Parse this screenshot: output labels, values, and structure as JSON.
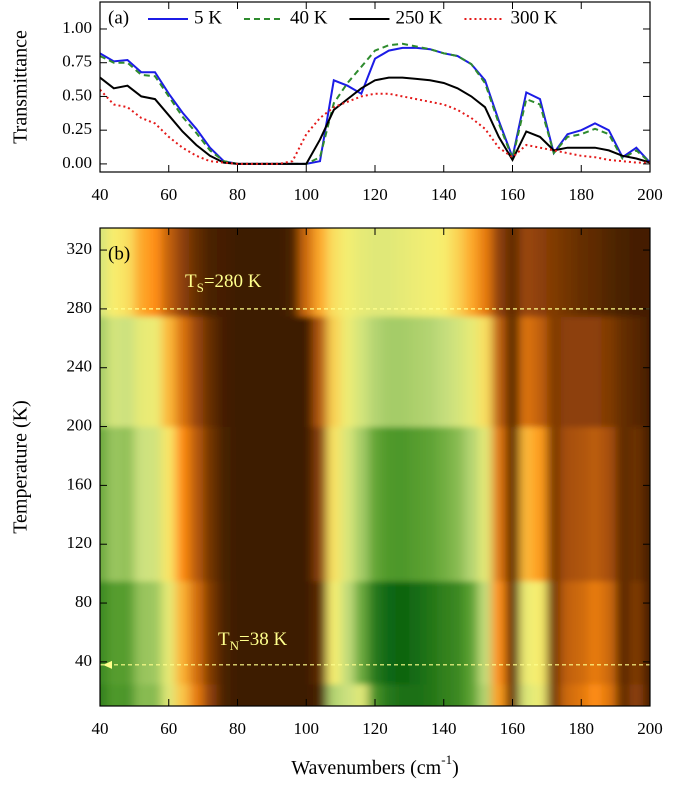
{
  "chart_data": [
    {
      "type": "line",
      "label": "(a)",
      "y_label": "Transmittance",
      "x": [
        40,
        44,
        48,
        52,
        56,
        60,
        64,
        68,
        72,
        76,
        80,
        84,
        88,
        92,
        96,
        100,
        104,
        108,
        112,
        116,
        120,
        124,
        128,
        132,
        136,
        140,
        144,
        148,
        152,
        156,
        160,
        164,
        168,
        172,
        176,
        180,
        184,
        188,
        192,
        196,
        200
      ],
      "series": [
        {
          "name": "5 K",
          "color": "#1c1ce6",
          "dash": "solid",
          "values": [
            0.82,
            0.76,
            0.77,
            0.68,
            0.68,
            0.52,
            0.38,
            0.26,
            0.12,
            0.02,
            0,
            0,
            0,
            0,
            0,
            0,
            0.02,
            0.62,
            0.58,
            0.52,
            0.78,
            0.84,
            0.86,
            0.86,
            0.85,
            0.82,
            0.8,
            0.74,
            0.62,
            0.32,
            0.05,
            0.53,
            0.48,
            0.08,
            0.22,
            0.25,
            0.3,
            0.25,
            0.05,
            0.12,
            0.01
          ]
        },
        {
          "name": "40 K",
          "color": "#2e8b2e",
          "dash": "dashed",
          "values": [
            0.8,
            0.75,
            0.75,
            0.66,
            0.65,
            0.5,
            0.35,
            0.23,
            0.1,
            0.02,
            0,
            0,
            0,
            0,
            0,
            0,
            0.05,
            0.45,
            0.6,
            0.72,
            0.84,
            0.88,
            0.89,
            0.87,
            0.85,
            0.82,
            0.8,
            0.74,
            0.6,
            0.3,
            0.04,
            0.48,
            0.44,
            0.08,
            0.2,
            0.22,
            0.26,
            0.22,
            0.04,
            0.1,
            0.01
          ]
        },
        {
          "name": "250 K",
          "color": "#000000",
          "dash": "solid",
          "values": [
            0.64,
            0.56,
            0.58,
            0.5,
            0.48,
            0.36,
            0.24,
            0.14,
            0.06,
            0.01,
            0,
            0,
            0,
            0,
            0,
            0,
            0.18,
            0.4,
            0.48,
            0.56,
            0.62,
            0.64,
            0.64,
            0.63,
            0.62,
            0.6,
            0.56,
            0.5,
            0.42,
            0.2,
            0.03,
            0.24,
            0.2,
            0.1,
            0.12,
            0.12,
            0.12,
            0.1,
            0.06,
            0.04,
            0.01
          ]
        },
        {
          "name": "300 K",
          "color": "#e41a1a",
          "dash": "dotted",
          "values": [
            0.55,
            0.44,
            0.42,
            0.34,
            0.3,
            0.2,
            0.12,
            0.06,
            0.02,
            0.01,
            0,
            0,
            0,
            0,
            0.02,
            0.22,
            0.34,
            0.42,
            0.46,
            0.5,
            0.52,
            0.52,
            0.5,
            0.48,
            0.46,
            0.44,
            0.4,
            0.34,
            0.26,
            0.12,
            0.05,
            0.14,
            0.12,
            0.1,
            0.08,
            0.06,
            0.05,
            0.03,
            0.02,
            0.01,
            0.01
          ]
        }
      ],
      "xlim": [
        40,
        200
      ],
      "xticks": [
        40,
        60,
        80,
        100,
        120,
        140,
        160,
        180,
        200
      ],
      "ylim": [
        -0.06,
        1.2
      ],
      "yticks": [
        {
          "value": 0,
          "label": "0.00"
        },
        {
          "value": 0.25,
          "label": "0.25"
        },
        {
          "value": 0.5,
          "label": "0.50"
        },
        {
          "value": 0.75,
          "label": "0.75"
        },
        {
          "value": 1,
          "label": "1.00"
        }
      ]
    },
    {
      "type": "heatmap",
      "label": "(b)",
      "y_label": "Temperature (K)",
      "x_label": {
        "text": "Wavenumbers (cm",
        "superscript": "-1",
        "after": ")"
      },
      "x": [
        40,
        44,
        48,
        52,
        56,
        60,
        64,
        68,
        72,
        76,
        80,
        84,
        88,
        92,
        96,
        100,
        104,
        108,
        112,
        116,
        120,
        124,
        128,
        132,
        136,
        140,
        144,
        148,
        152,
        156,
        160,
        164,
        168,
        172,
        176,
        180,
        184,
        188,
        192,
        196,
        200
      ],
      "y": [
        10,
        40,
        150,
        250,
        300
      ],
      "z": [
        [
          0.82,
          0.76,
          0.77,
          0.68,
          0.68,
          0.52,
          0.38,
          0.26,
          0.12,
          0.02,
          0,
          0,
          0,
          0,
          0,
          0,
          0.02,
          0.62,
          0.58,
          0.52,
          0.78,
          0.84,
          0.86,
          0.86,
          0.85,
          0.82,
          0.8,
          0.74,
          0.62,
          0.32,
          0.05,
          0.53,
          0.48,
          0.08,
          0.22,
          0.25,
          0.3,
          0.25,
          0.05,
          0.12,
          0.01
        ],
        [
          0.8,
          0.75,
          0.75,
          0.66,
          0.65,
          0.5,
          0.35,
          0.23,
          0.1,
          0.02,
          0,
          0,
          0,
          0,
          0,
          0,
          0.05,
          0.45,
          0.6,
          0.72,
          0.84,
          0.88,
          0.89,
          0.87,
          0.85,
          0.82,
          0.8,
          0.74,
          0.6,
          0.3,
          0.04,
          0.48,
          0.44,
          0.08,
          0.2,
          0.22,
          0.26,
          0.22,
          0.04,
          0.1,
          0.01
        ],
        [
          0.72,
          0.655,
          0.665,
          0.58,
          0.565,
          0.43,
          0.295,
          0.185,
          0.08,
          0.015,
          0,
          0,
          0,
          0,
          0,
          0,
          0.115,
          0.425,
          0.54,
          0.64,
          0.73,
          0.76,
          0.765,
          0.75,
          0.735,
          0.71,
          0.68,
          0.62,
          0.51,
          0.25,
          0.035,
          0.36,
          0.32,
          0.09,
          0.16,
          0.17,
          0.19,
          0.16,
          0.05,
          0.07,
          0.01
        ],
        [
          0.64,
          0.56,
          0.58,
          0.5,
          0.48,
          0.36,
          0.24,
          0.14,
          0.06,
          0.01,
          0,
          0,
          0,
          0,
          0,
          0,
          0.18,
          0.4,
          0.48,
          0.56,
          0.62,
          0.64,
          0.64,
          0.63,
          0.62,
          0.6,
          0.56,
          0.5,
          0.42,
          0.2,
          0.03,
          0.24,
          0.2,
          0.1,
          0.12,
          0.12,
          0.12,
          0.1,
          0.06,
          0.04,
          0.01
        ],
        [
          0.55,
          0.44,
          0.42,
          0.34,
          0.3,
          0.2,
          0.12,
          0.06,
          0.02,
          0.01,
          0,
          0,
          0,
          0,
          0.02,
          0.22,
          0.34,
          0.42,
          0.46,
          0.5,
          0.52,
          0.52,
          0.5,
          0.48,
          0.46,
          0.44,
          0.4,
          0.34,
          0.26,
          0.12,
          0.05,
          0.14,
          0.12,
          0.1,
          0.08,
          0.06,
          0.05,
          0.03,
          0.02,
          0.01,
          0.01
        ]
      ],
      "colors": [
        "#3d1c02",
        "#a04a08",
        "#ff8c10",
        "#f8f070",
        "#c8e080",
        "#5aa030",
        "#0c6410"
      ],
      "xlim": [
        40,
        200
      ],
      "xticks": [
        40,
        60,
        80,
        100,
        120,
        140,
        160,
        180,
        200
      ],
      "ylim": [
        10,
        335
      ],
      "yticks": [
        40,
        80,
        120,
        160,
        200,
        240,
        280,
        320
      ],
      "annotations": [
        {
          "label": "T",
          "subscript": "S",
          "text": "=280 K",
          "value": 280
        },
        {
          "label": "T",
          "subscript": "N",
          "text": "=38 K",
          "value": 38
        }
      ]
    }
  ]
}
